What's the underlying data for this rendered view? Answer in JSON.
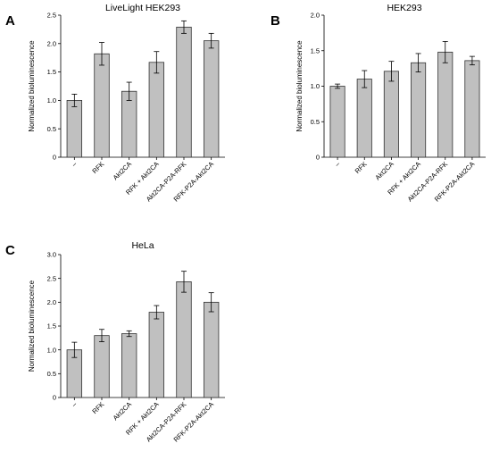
{
  "chart_data": [
    {
      "panel": "A",
      "type": "bar",
      "title": "LiveLight HEK293",
      "ylabel": "Normalized bioluminescence",
      "xlabel": "",
      "ylim": [
        0,
        2.5
      ],
      "yticks": [
        0,
        0.5,
        1.0,
        1.5,
        2.0,
        2.5
      ],
      "ytick_labels": [
        "0",
        "0.5",
        "1.0",
        "1.5",
        "2.0",
        "2.5"
      ],
      "categories": [
        "–",
        "RFK",
        "Akt2CA",
        "RFK + Akt2CA",
        "Akt2CA-P2A-RFK",
        "RFK-P2A-Akt2CA"
      ],
      "values": [
        1.0,
        1.82,
        1.16,
        1.67,
        2.29,
        2.05
      ],
      "errors": [
        0.11,
        0.2,
        0.16,
        0.19,
        0.11,
        0.13
      ]
    },
    {
      "panel": "B",
      "type": "bar",
      "title": "HEK293",
      "ylabel": "Normalized bioluminescence",
      "xlabel": "",
      "ylim": [
        0,
        2.0
      ],
      "yticks": [
        0,
        0.5,
        1.0,
        1.5,
        2.0
      ],
      "ytick_labels": [
        "0",
        "0.5",
        "1.0",
        "1.5",
        "2.0"
      ],
      "categories": [
        "–",
        "RFK",
        "Akt2CA",
        "RFK + Akt2CA",
        "Akt2CA-P2A-RFK",
        "RFK-P2A-Akt2CA"
      ],
      "values": [
        1.0,
        1.1,
        1.21,
        1.33,
        1.48,
        1.36
      ],
      "errors": [
        0.03,
        0.12,
        0.14,
        0.13,
        0.15,
        0.06
      ]
    },
    {
      "panel": "C",
      "type": "bar",
      "title": "HeLa",
      "ylabel": "Normalized bioluminescence",
      "xlabel": "",
      "ylim": [
        0,
        3.0
      ],
      "yticks": [
        0,
        0.5,
        1.0,
        1.5,
        2.0,
        2.5,
        3.0
      ],
      "ytick_labels": [
        "0",
        "0.5",
        "1.0",
        "1.5",
        "2.0",
        "2.5",
        "3.0"
      ],
      "categories": [
        "–",
        "RFK",
        "Akt2CA",
        "RFK + Akt2CA",
        "Akt2CA-P2A-RFK",
        "RFK-P2A-Akt2CA"
      ],
      "values": [
        1.0,
        1.3,
        1.34,
        1.79,
        2.43,
        2.0
      ],
      "errors": [
        0.16,
        0.13,
        0.06,
        0.14,
        0.22,
        0.2
      ]
    }
  ],
  "colors": {
    "bar": "#c0c0c0",
    "edge": "#333333"
  }
}
